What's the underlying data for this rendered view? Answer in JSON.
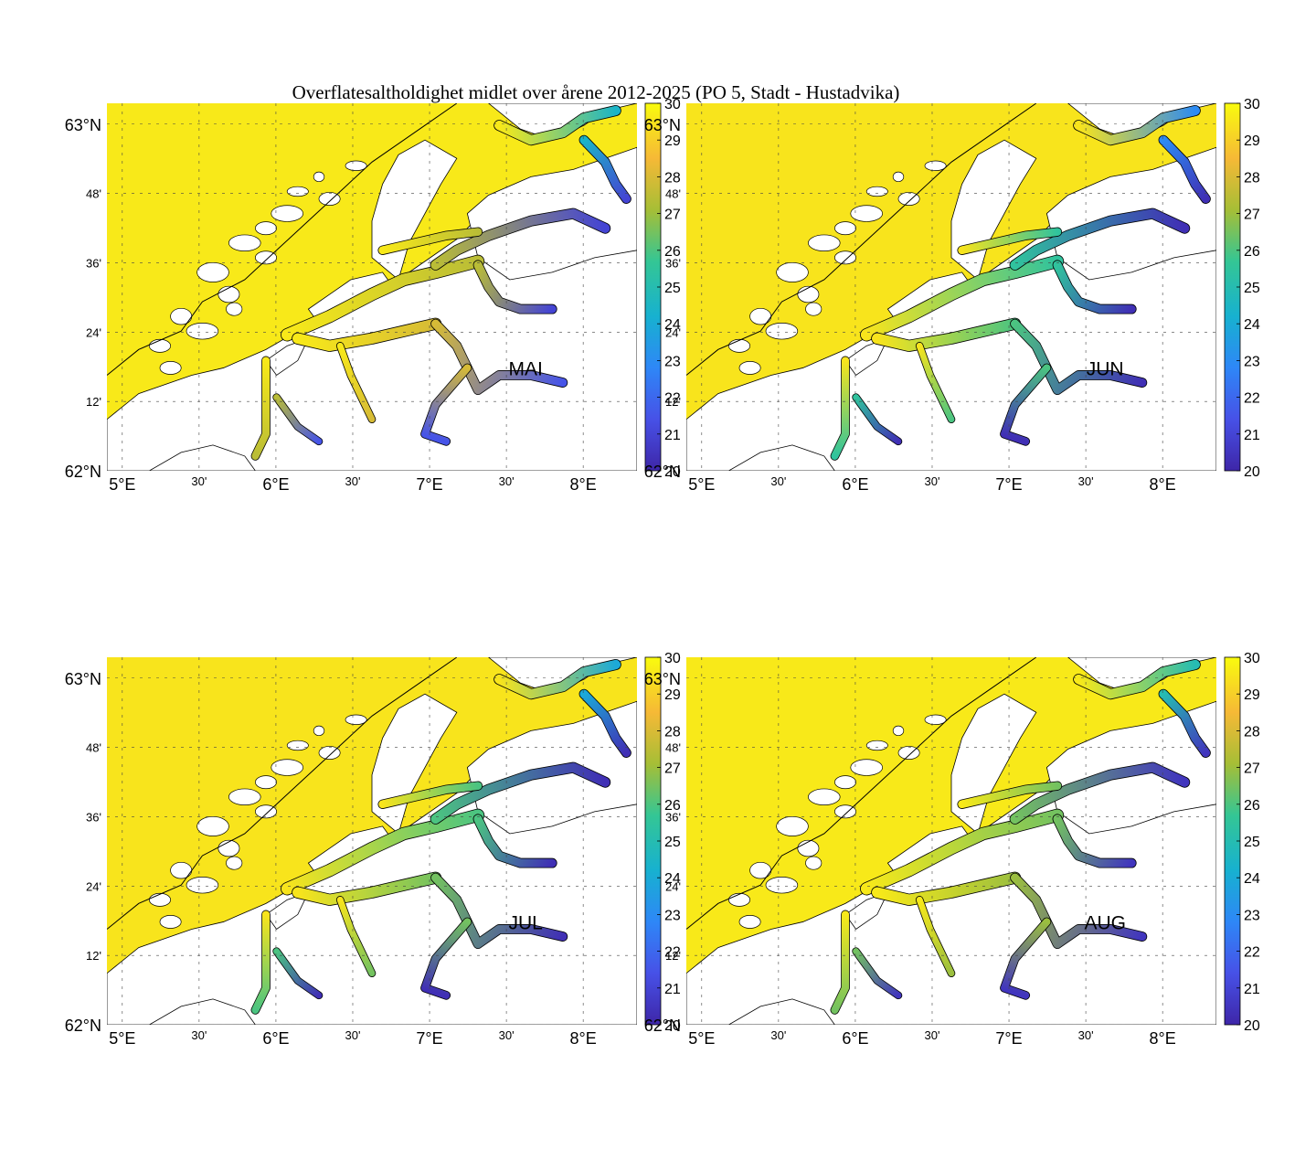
{
  "title": "Overflatesaltholdighet midlet over årene 2012-2025 (PO 5, Stadt - Hustadvika)",
  "colors": {
    "sea_high": "#f9fb0e",
    "colormap": [
      "#3e26a8",
      "#4751e7",
      "#2e87f7",
      "#17b1d0",
      "#34c694",
      "#a6be36",
      "#f6b936",
      "#f9fb0e"
    ]
  },
  "chart_data": {
    "type": "heatmap",
    "variable": "surface salinity",
    "colorbar": {
      "min": 20,
      "max": 30,
      "ticks": [
        "20",
        "21",
        "22",
        "23",
        "24",
        "25",
        "26",
        "27",
        "28",
        "29",
        "30"
      ]
    },
    "lon_ticks": [
      "5°E",
      "30'",
      "6°E",
      "30'",
      "7°E",
      "30'",
      "8°E"
    ],
    "lat_ticks": [
      "62°N",
      "12'",
      "24'",
      "36'",
      "48'",
      "63°N"
    ],
    "xlim": [
      4.9,
      8.35
    ],
    "ylim": [
      62.0,
      63.06
    ],
    "panels": [
      {
        "month": "MAI",
        "fjord_levels": {
          "outer": 29.6,
          "storfjord_mid": 27.5,
          "storfjord_inner": 21.0,
          "romsdal_mid": 28.0,
          "romsdal_inner": 21.5,
          "north_fjords": 24.5
        }
      },
      {
        "month": "JUN",
        "fjord_levels": {
          "outer": 29.5,
          "storfjord_mid": 25.5,
          "storfjord_inner": 20.3,
          "romsdal_mid": 26.0,
          "romsdal_inner": 20.3,
          "north_fjords": 23.0
        }
      },
      {
        "month": "JUL",
        "fjord_levels": {
          "outer": 29.5,
          "storfjord_mid": 26.0,
          "storfjord_inner": 20.3,
          "romsdal_mid": 26.5,
          "romsdal_inner": 20.3,
          "north_fjords": 24.0
        }
      },
      {
        "month": "AUG",
        "fjord_levels": {
          "outer": 29.6,
          "storfjord_mid": 26.5,
          "storfjord_inner": 20.5,
          "romsdal_mid": 27.0,
          "romsdal_inner": 20.5,
          "north_fjords": 25.0
        }
      }
    ]
  }
}
